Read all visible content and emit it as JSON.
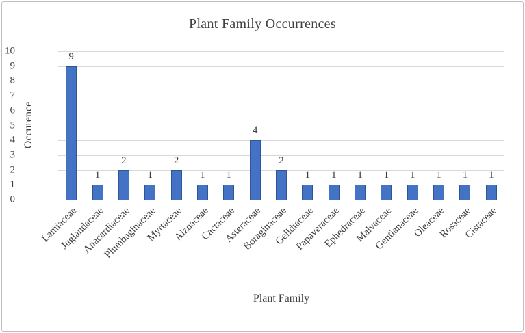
{
  "chart_data": {
    "type": "bar",
    "title": "Plant Family Occurrences",
    "xlabel": "Plant Family",
    "ylabel": "Occurence",
    "categories": [
      "Lamiaceae",
      "Juglandaceae",
      "Anacardiaceae",
      "Plumbaginaceae",
      "Myrtaceae",
      "Aizoaceae",
      "Cactaceae",
      "Asteraceae",
      "Boraginaceae",
      "Gelidiaceae",
      "Papaveraceae",
      "Ephedraceae",
      "Malvaceae",
      "Gentianaceae",
      "Oleaceae",
      "Rosaceae",
      "Cistaceae"
    ],
    "values": [
      9,
      1,
      2,
      1,
      2,
      1,
      1,
      4,
      2,
      1,
      1,
      1,
      1,
      1,
      1,
      1,
      1
    ],
    "data_labels_shown": true,
    "ylim": [
      0,
      10
    ],
    "ytick_step": 1,
    "grid": "horizontal",
    "legend": "none",
    "colors": {
      "bar_fill": "#4472c4",
      "bar_border": "#2e5596",
      "gridline": "#d9d9d9",
      "axis_line": "#a6a6a6",
      "text": "#404040"
    }
  }
}
